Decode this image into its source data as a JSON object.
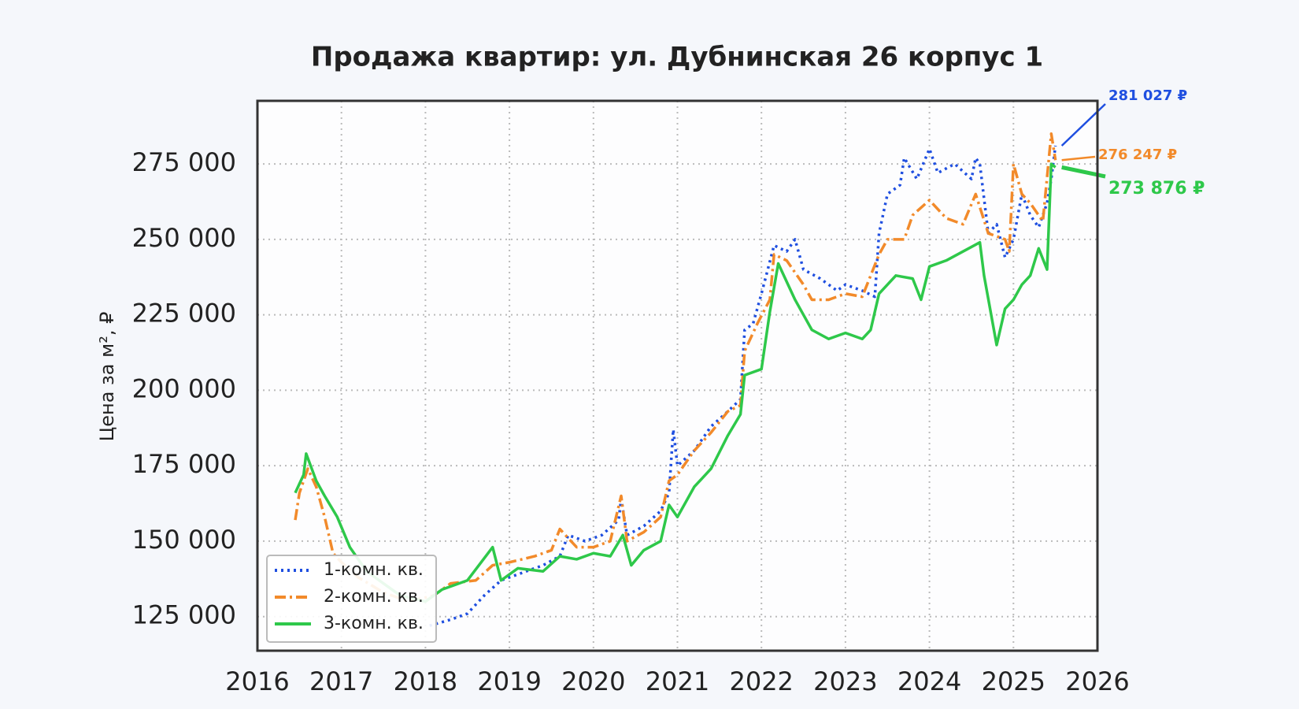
{
  "chart_data": {
    "type": "line",
    "title": "Продажа квартир: ул. Дубнинская 26 корпус 1",
    "y_label": "Цена за м², ₽",
    "xlim": [
      2016,
      2026
    ],
    "xticks": [
      2016,
      2017,
      2018,
      2019,
      2020,
      2021,
      2022,
      2023,
      2024,
      2025,
      2026
    ],
    "ylim": [
      113700,
      295900
    ],
    "yticks": [
      {
        "value": 125000,
        "label": "125 000"
      },
      {
        "value": 150000,
        "label": "150 000"
      },
      {
        "value": 175000,
        "label": "175 000"
      },
      {
        "value": 200000,
        "label": "200 000"
      },
      {
        "value": 225000,
        "label": "225 000"
      },
      {
        "value": 250000,
        "label": "250 000"
      },
      {
        "value": 275000,
        "label": "275 000"
      }
    ],
    "grid": true,
    "legend": "lower left",
    "series": [
      {
        "name": "1-комн. кв.",
        "color": "#1f4fe0",
        "line_style": "dotted",
        "x": [
          2018.05,
          2018.3,
          2018.5,
          2018.7,
          2018.9,
          2019.1,
          2019.4,
          2019.6,
          2019.7,
          2019.9,
          2020.1,
          2020.3,
          2020.33,
          2020.4,
          2020.6,
          2020.8,
          2020.9,
          2020.95,
          2021.0,
          2021.2,
          2021.4,
          2021.6,
          2021.75,
          2021.8,
          2021.9,
          2022.0,
          2022.15,
          2022.3,
          2022.4,
          2022.5,
          2022.7,
          2022.9,
          2023.0,
          2023.2,
          2023.35,
          2023.4,
          2023.5,
          2023.65,
          2023.7,
          2023.85,
          2024.0,
          2024.1,
          2024.3,
          2024.5,
          2024.55,
          2024.6,
          2024.7,
          2024.8,
          2024.9,
          2025.0,
          2025.1,
          2025.2,
          2025.3,
          2025.4,
          2025.45,
          2025.5
        ],
        "values": [
          122000,
          124000,
          126000,
          132000,
          137000,
          139000,
          142000,
          145000,
          152000,
          150000,
          152000,
          157000,
          164000,
          152000,
          155000,
          160000,
          166000,
          187000,
          175000,
          180000,
          188000,
          193000,
          197000,
          220000,
          222000,
          232000,
          248000,
          246000,
          250000,
          240000,
          237000,
          233000,
          235000,
          233000,
          231000,
          252000,
          265000,
          268000,
          277000,
          270000,
          280000,
          272000,
          275000,
          270000,
          277000,
          275000,
          252000,
          255000,
          244000,
          250000,
          265000,
          258000,
          254000,
          262000,
          270000,
          281027
        ],
        "value_labels": [
          null,
          null,
          null,
          null,
          null,
          null,
          null,
          null,
          null,
          null,
          null,
          null,
          null,
          null,
          null,
          null,
          null,
          null,
          null,
          null,
          null,
          null,
          null,
          null,
          null,
          null,
          null,
          null,
          null,
          null,
          null,
          null,
          null,
          null,
          null,
          null,
          null,
          null,
          null,
          null,
          null,
          null,
          null,
          null,
          null,
          null,
          null,
          null,
          null,
          null,
          null,
          null,
          null,
          null,
          null,
          "281 027 ₽"
        ]
      },
      {
        "name": "2-комн. кв.",
        "color": "#f28a2a",
        "line_style": "dashdot",
        "x": [
          2016.45,
          2016.5,
          2016.6,
          2016.7,
          2016.8,
          2016.9,
          2017.0,
          2017.2,
          2017.5,
          2017.8,
          2018.1,
          2018.3,
          2018.6,
          2018.8,
          2019.0,
          2019.3,
          2019.5,
          2019.6,
          2019.8,
          2020.0,
          2020.2,
          2020.33,
          2020.4,
          2020.6,
          2020.8,
          2020.9,
          2021.0,
          2021.2,
          2021.4,
          2021.6,
          2021.75,
          2021.8,
          2021.95,
          2022.1,
          2022.15,
          2022.3,
          2022.5,
          2022.6,
          2022.8,
          2023.0,
          2023.2,
          2023.3,
          2023.4,
          2023.5,
          2023.7,
          2023.8,
          2024.0,
          2024.2,
          2024.4,
          2024.55,
          2024.7,
          2024.9,
          2024.95,
          2025.0,
          2025.1,
          2025.2,
          2025.35,
          2025.45,
          2025.5
        ],
        "values": [
          157000,
          166000,
          174000,
          168000,
          158000,
          146000,
          143000,
          138000,
          133000,
          130000,
          132000,
          136000,
          137000,
          142000,
          143000,
          145000,
          147000,
          154000,
          148000,
          148000,
          150000,
          165000,
          150000,
          153000,
          158000,
          170000,
          172000,
          180000,
          186000,
          193000,
          195000,
          213000,
          222000,
          230000,
          245000,
          243000,
          235000,
          230000,
          230000,
          232000,
          231000,
          238000,
          245000,
          250000,
          250000,
          258000,
          263000,
          257000,
          255000,
          265000,
          252000,
          250000,
          246000,
          275000,
          265000,
          262000,
          256000,
          285000,
          276247
        ],
        "value_labels": [
          null,
          null,
          null,
          null,
          null,
          null,
          null,
          null,
          null,
          null,
          null,
          null,
          null,
          null,
          null,
          null,
          null,
          null,
          null,
          null,
          null,
          null,
          null,
          null,
          null,
          null,
          null,
          null,
          null,
          null,
          null,
          null,
          null,
          null,
          null,
          null,
          null,
          null,
          null,
          null,
          null,
          null,
          null,
          null,
          null,
          null,
          null,
          null,
          null,
          null,
          null,
          null,
          null,
          null,
          null,
          null,
          null,
          null,
          "276 247 ₽"
        ]
      },
      {
        "name": "3-комн. кв.",
        "color": "#2ec84a",
        "line_style": "solid",
        "x": [
          2016.45,
          2016.55,
          2016.58,
          2016.7,
          2016.8,
          2016.95,
          2017.1,
          2017.3,
          2017.7,
          2018.0,
          2018.2,
          2018.5,
          2018.8,
          2018.9,
          2019.1,
          2019.4,
          2019.6,
          2019.8,
          2020.0,
          2020.2,
          2020.35,
          2020.45,
          2020.6,
          2020.8,
          2020.9,
          2021.0,
          2021.2,
          2021.4,
          2021.6,
          2021.75,
          2021.8,
          2022.0,
          2022.1,
          2022.2,
          2022.4,
          2022.6,
          2022.8,
          2023.0,
          2023.2,
          2023.3,
          2023.4,
          2023.6,
          2023.8,
          2023.9,
          2024.0,
          2024.2,
          2024.4,
          2024.6,
          2024.65,
          2024.8,
          2024.9,
          2025.0,
          2025.1,
          2025.2,
          2025.3,
          2025.4,
          2025.45,
          2025.5
        ],
        "values": [
          166000,
          172000,
          179000,
          170000,
          165000,
          158000,
          148000,
          140000,
          132000,
          130000,
          134000,
          137000,
          148000,
          137000,
          141000,
          140000,
          145000,
          144000,
          146000,
          145000,
          152000,
          142000,
          147000,
          150000,
          162000,
          158000,
          168000,
          174000,
          185000,
          192000,
          205000,
          207000,
          226000,
          242000,
          230000,
          220000,
          217000,
          219000,
          217000,
          220000,
          232000,
          238000,
          237000,
          230000,
          241000,
          243000,
          246000,
          249000,
          238000,
          215000,
          227000,
          230000,
          235000,
          238000,
          247000,
          240000,
          275000,
          273876
        ],
        "value_labels": [
          null,
          null,
          null,
          null,
          null,
          null,
          null,
          null,
          null,
          null,
          null,
          null,
          null,
          null,
          null,
          null,
          null,
          null,
          null,
          null,
          null,
          null,
          null,
          null,
          null,
          null,
          null,
          null,
          null,
          null,
          null,
          null,
          null,
          null,
          null,
          null,
          null,
          null,
          null,
          null,
          null,
          null,
          null,
          null,
          null,
          null,
          null,
          null,
          null,
          null,
          null,
          null,
          null,
          null,
          null,
          null,
          null,
          "273 876 ₽"
        ]
      }
    ]
  }
}
